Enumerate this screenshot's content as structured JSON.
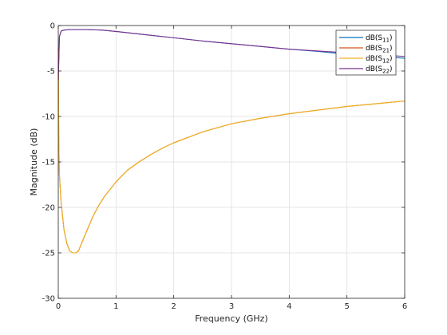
{
  "chart_data": {
    "type": "line",
    "xlabel": "Frequency (GHz)",
    "ylabel": "Magnitude (dB)",
    "xlim": [
      0,
      6
    ],
    "ylim": [
      -30,
      0
    ],
    "xticks": [
      0,
      1,
      2,
      3,
      4,
      5,
      6
    ],
    "yticks": [
      -30,
      -25,
      -20,
      -15,
      -10,
      -5,
      0
    ],
    "xtick_labels": [
      "0",
      "1",
      "2",
      "3",
      "4",
      "5",
      "6"
    ],
    "ytick_labels": [
      "-30",
      "-25",
      "-20",
      "-15",
      "-10",
      "-5",
      "0"
    ],
    "grid": true,
    "legend_position": "top-right",
    "series": [
      {
        "name": "dB(S11)",
        "color": "#0072bd",
        "x": [
          0.0,
          0.02,
          0.05,
          0.1,
          0.2,
          0.3,
          0.5,
          0.75,
          1.0,
          1.5,
          2.0,
          2.5,
          3.0,
          3.5,
          4.0,
          4.5,
          5.0,
          5.5,
          6.0
        ],
        "y": [
          -6.0,
          -1.2,
          -0.6,
          -0.5,
          -0.45,
          -0.45,
          -0.45,
          -0.5,
          -0.65,
          -1.0,
          -1.35,
          -1.7,
          -2.0,
          -2.3,
          -2.6,
          -2.85,
          -3.15,
          -3.35,
          -3.6
        ]
      },
      {
        "name": "dB(S21)",
        "color": "#d95319",
        "x": [
          0.0,
          0.005,
          0.01,
          0.02,
          0.05,
          0.1,
          0.15,
          0.2,
          0.25,
          0.3,
          0.35,
          0.4,
          0.5,
          0.6,
          0.7,
          0.8,
          1.0,
          1.2,
          1.4,
          1.6,
          1.8,
          2.0,
          2.5,
          3.0,
          3.5,
          4.0,
          4.5,
          5.0,
          5.5,
          6.0
        ],
        "y": [
          -2.5,
          -8.0,
          -13.0,
          -16.5,
          -19.5,
          -22.5,
          -24.0,
          -24.8,
          -25.0,
          -25.0,
          -24.8,
          -24.0,
          -22.5,
          -21.0,
          -19.8,
          -18.8,
          -17.2,
          -15.9,
          -15.0,
          -14.2,
          -13.5,
          -12.9,
          -11.7,
          -10.8,
          -10.2,
          -9.7,
          -9.3,
          -8.9,
          -8.6,
          -8.3
        ]
      },
      {
        "name": "dB(S12)",
        "color": "#edb120",
        "x": [
          0.0,
          0.005,
          0.01,
          0.02,
          0.05,
          0.1,
          0.15,
          0.2,
          0.25,
          0.3,
          0.35,
          0.4,
          0.5,
          0.6,
          0.7,
          0.8,
          1.0,
          1.2,
          1.4,
          1.6,
          1.8,
          2.0,
          2.5,
          3.0,
          3.5,
          4.0,
          4.5,
          5.0,
          5.5,
          6.0
        ],
        "y": [
          -2.5,
          -8.0,
          -13.0,
          -16.5,
          -19.5,
          -22.5,
          -24.0,
          -24.8,
          -25.0,
          -25.0,
          -24.8,
          -24.0,
          -22.5,
          -21.0,
          -19.8,
          -18.8,
          -17.2,
          -15.9,
          -15.0,
          -14.2,
          -13.5,
          -12.9,
          -11.7,
          -10.8,
          -10.2,
          -9.7,
          -9.3,
          -8.9,
          -8.6,
          -8.3
        ]
      },
      {
        "name": "dB(S22)",
        "color": "#7e2f8e",
        "x": [
          0.0,
          0.02,
          0.05,
          0.1,
          0.2,
          0.3,
          0.5,
          0.75,
          1.0,
          1.5,
          2.0,
          2.5,
          3.0,
          3.5,
          4.0,
          4.5,
          5.0,
          5.5,
          6.0
        ],
        "y": [
          -6.0,
          -1.2,
          -0.6,
          -0.5,
          -0.45,
          -0.45,
          -0.45,
          -0.5,
          -0.65,
          -1.0,
          -1.35,
          -1.7,
          -2.0,
          -2.3,
          -2.6,
          -2.8,
          -3.0,
          -3.2,
          -3.4
        ]
      }
    ],
    "legend": [
      {
        "prefix": "dB(S",
        "sub": "11",
        "suffix": ")"
      },
      {
        "prefix": "dB(S",
        "sub": "21",
        "suffix": ")"
      },
      {
        "prefix": "dB(S",
        "sub": "12",
        "suffix": ")"
      },
      {
        "prefix": "dB(S",
        "sub": "22",
        "suffix": ")"
      }
    ]
  }
}
